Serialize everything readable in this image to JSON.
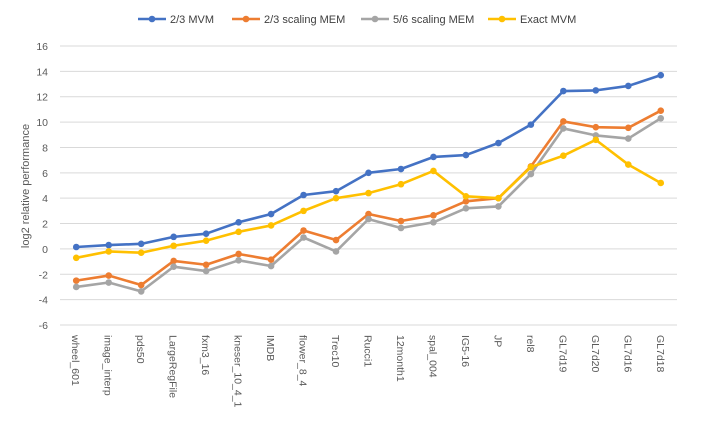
{
  "chart_data": {
    "type": "line",
    "title": "",
    "xlabel": "",
    "ylabel": "log2 relative performance",
    "ylim": [
      -6,
      16
    ],
    "ytick_step": 2,
    "grid": true,
    "legend_position": "top",
    "categories": [
      "wheel_601",
      "image_interp",
      "pds50",
      "LargeRegFile",
      "fxm3_16",
      "kneser_10_4_1",
      "IMDB",
      "flower_8_4",
      "Trec10",
      "Rucci1",
      "12month1",
      "spal_004",
      "IG5-16",
      "JP",
      "rel8",
      "GL7d19",
      "GL7d20",
      "GL7d16",
      "GL7d18"
    ],
    "series": [
      {
        "name": "2/3 MVM",
        "color": "#4472C4",
        "values": [
          0.15,
          0.3,
          0.4,
          0.95,
          1.2,
          2.1,
          2.75,
          4.25,
          4.55,
          6.0,
          6.3,
          7.25,
          7.4,
          8.35,
          9.8,
          12.45,
          12.5,
          12.85,
          13.7
        ]
      },
      {
        "name": "2/3 scaling MEM",
        "color": "#ED7D31",
        "values": [
          -2.5,
          -2.1,
          -2.85,
          -0.95,
          -1.25,
          -0.4,
          -0.85,
          1.45,
          0.7,
          2.75,
          2.2,
          2.65,
          3.75,
          4.0,
          6.5,
          10.05,
          9.6,
          9.55,
          10.9
        ]
      },
      {
        "name": "5/6 scaling MEM",
        "color": "#A5A5A5",
        "values": [
          -3.0,
          -2.65,
          -3.35,
          -1.4,
          -1.75,
          -0.9,
          -1.35,
          0.9,
          -0.2,
          2.35,
          1.65,
          2.1,
          3.2,
          3.35,
          5.9,
          9.5,
          8.95,
          8.7,
          10.3
        ]
      },
      {
        "name": "Exact MVM",
        "color": "#FFC000",
        "values": [
          -0.7,
          -0.2,
          -0.3,
          0.25,
          0.65,
          1.35,
          1.85,
          3.0,
          4.0,
          4.4,
          5.1,
          6.15,
          4.15,
          4.0,
          6.45,
          7.35,
          8.6,
          6.65,
          5.2
        ]
      }
    ]
  }
}
